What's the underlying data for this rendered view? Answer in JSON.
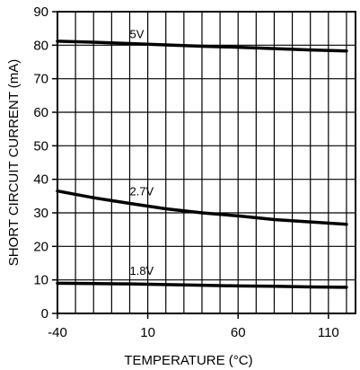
{
  "chart_data": {
    "type": "line",
    "title": "",
    "xlabel": "TEMPERATURE (°C)",
    "ylabel": "SHORT CIRCUIT CURRENT (mA)",
    "xlim": [
      -40,
      125
    ],
    "ylim": [
      0,
      90
    ],
    "x_ticks": [
      -40,
      10,
      60,
      110
    ],
    "x_tick_labels": [
      "-40",
      "10",
      "60",
      "110"
    ],
    "y_ticks": [
      0,
      10,
      20,
      30,
      40,
      50,
      60,
      70,
      80,
      90
    ],
    "y_tick_labels": [
      "0",
      "10",
      "20",
      "30",
      "40",
      "50",
      "60",
      "70",
      "80",
      "90"
    ],
    "grid": true,
    "series": [
      {
        "name": "5V",
        "x": [
          -40,
          -20,
          0,
          20,
          40,
          60,
          80,
          100,
          120
        ],
        "y": [
          81.2,
          80.9,
          80.5,
          80.1,
          79.7,
          79.4,
          79.0,
          78.6,
          78.3
        ]
      },
      {
        "name": "2.7V",
        "x": [
          -40,
          -20,
          0,
          20,
          40,
          60,
          80,
          100,
          120
        ],
        "y": [
          36.5,
          34.5,
          32.8,
          31.2,
          30.0,
          29.1,
          28.0,
          27.3,
          26.6
        ]
      },
      {
        "name": "1.8V",
        "x": [
          -40,
          -20,
          0,
          20,
          40,
          60,
          80,
          100,
          120
        ],
        "y": [
          9.0,
          8.9,
          8.8,
          8.6,
          8.4,
          8.2,
          8.1,
          7.9,
          7.8
        ]
      }
    ]
  }
}
